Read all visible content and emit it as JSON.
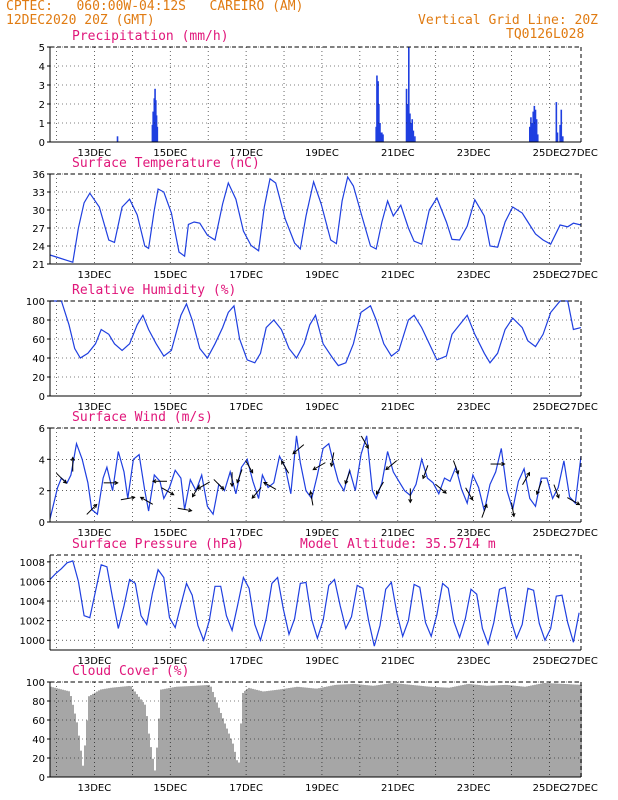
{
  "header": {
    "line1": "CPTEC:   060:00W-04:12S   CAREIRO (AM)",
    "line2": "12DEC2020 20Z (GMT)",
    "grid_note": "Vertical Grid Line: 20Z",
    "code": "TQ0126L028"
  },
  "x_ticks": [
    "13DEC",
    "15DEC",
    "17DEC",
    "19DEC",
    "21DEC",
    "23DEC",
    "25DEC",
    "27DEC"
  ],
  "colors": {
    "header": "#e07b12",
    "title": "#e0167a",
    "line": "#1f3fe0",
    "cloud": "#a6a6a6",
    "wind_arrow": "#000000"
  },
  "chart_data": [
    {
      "type": "bar",
      "id": "precip",
      "title": "Precipitation (mm/h)",
      "ylim": [
        0,
        5
      ],
      "yticks": [
        "0",
        "1",
        "2",
        "3",
        "4",
        "5"
      ],
      "grid": true,
      "x_unit": "day offset from 12DEC2020 20Z",
      "x": [
        1.78,
        2.7,
        2.72,
        2.75,
        2.77,
        2.79,
        2.81,
        2.83,
        8.6,
        8.62,
        8.65,
        8.67,
        8.7,
        8.72,
        8.75,
        8.78,
        9.4,
        9.43,
        9.46,
        9.49,
        9.52,
        9.55,
        9.58,
        9.62,
        12.65,
        12.68,
        12.71,
        12.74,
        12.77,
        12.8,
        12.83,
        12.86,
        13.35,
        13.38,
        13.45,
        13.48,
        13.52
      ],
      "values": [
        0.3,
        0.9,
        1.6,
        2.3,
        2.8,
        2.2,
        1.4,
        0.8,
        0.8,
        3.5,
        3.2,
        2.0,
        1.0,
        0.5,
        0.5,
        0.4,
        2.8,
        2.0,
        5.0,
        1.5,
        1.0,
        1.2,
        0.6,
        0.3,
        0.8,
        1.3,
        1.0,
        1.6,
        1.9,
        1.7,
        1.2,
        0.4,
        2.1,
        0.5,
        0.9,
        1.7,
        0.3
      ]
    },
    {
      "type": "line",
      "id": "temp",
      "title": "Surface Temperature (nC)",
      "ylim": [
        21,
        36
      ],
      "yticks": [
        "21",
        "24",
        "27",
        "30",
        "33",
        "36"
      ],
      "grid": true,
      "x": [
        0,
        0.25,
        0.45,
        0.6,
        0.75,
        0.9,
        1.05,
        1.3,
        1.55,
        1.7,
        1.9,
        2.1,
        2.3,
        2.5,
        2.6,
        2.75,
        2.85,
        3.0,
        3.2,
        3.4,
        3.55,
        3.65,
        3.8,
        3.95,
        4.15,
        4.35,
        4.55,
        4.7,
        4.9,
        5.1,
        5.3,
        5.5,
        5.65,
        5.8,
        5.95,
        6.2,
        6.45,
        6.6,
        6.75,
        6.95,
        7.15,
        7.4,
        7.55,
        7.7,
        7.85,
        8.0,
        8.2,
        8.45,
        8.6,
        8.75,
        8.9,
        9.05,
        9.25,
        9.45,
        9.6,
        9.8,
        10.0,
        10.2,
        10.45,
        10.6,
        10.8,
        11.0,
        11.2,
        11.45,
        11.6,
        11.8,
        12.0,
        12.2,
        12.45,
        12.6,
        12.8,
        13.0,
        13.2,
        13.45,
        13.65,
        13.8,
        14.0
      ],
      "values": [
        22.5,
        22,
        21.6,
        21.3,
        27,
        31.2,
        32.8,
        30.5,
        25,
        24.6,
        30.5,
        31.8,
        29.2,
        24,
        23.6,
        30,
        33.5,
        33,
        29.5,
        23,
        22.3,
        27.6,
        28,
        27.8,
        25.8,
        25,
        31,
        34.5,
        31.8,
        26.5,
        24.1,
        23.2,
        30.5,
        35.2,
        34.5,
        28.5,
        24.5,
        23.5,
        29,
        34.7,
        31,
        25,
        24.4,
        31.5,
        35.5,
        34,
        29.5,
        24,
        23.5,
        28,
        31.5,
        29,
        30.8,
        27,
        24.8,
        24.3,
        30,
        32,
        28,
        25.1,
        25,
        27.3,
        31.7,
        29,
        24,
        23.8,
        28,
        30.5,
        29.5,
        28,
        26,
        25,
        24.3,
        27.5,
        27.2,
        27.8,
        27.5
      ]
    },
    {
      "type": "line",
      "id": "rh",
      "title": "Relative Humidity (%)",
      "ylim": [
        0,
        100
      ],
      "yticks": [
        "0",
        "20",
        "40",
        "60",
        "80",
        "100"
      ],
      "grid": true,
      "x": [
        0,
        0.3,
        0.5,
        0.65,
        0.8,
        1.0,
        1.2,
        1.35,
        1.55,
        1.7,
        1.9,
        2.1,
        2.3,
        2.45,
        2.6,
        2.8,
        3.0,
        3.2,
        3.45,
        3.6,
        3.75,
        3.95,
        4.15,
        4.35,
        4.55,
        4.7,
        4.85,
        5.0,
        5.2,
        5.4,
        5.55,
        5.7,
        5.9,
        6.1,
        6.3,
        6.5,
        6.7,
        6.85,
        7.0,
        7.2,
        7.45,
        7.6,
        7.8,
        8.0,
        8.2,
        8.45,
        8.6,
        8.8,
        9.0,
        9.2,
        9.45,
        9.6,
        9.8,
        10.0,
        10.2,
        10.45,
        10.6,
        10.8,
        11.0,
        11.2,
        11.45,
        11.6,
        11.8,
        12.0,
        12.2,
        12.45,
        12.6,
        12.8,
        13.0,
        13.2,
        13.45,
        13.65,
        13.8,
        14.0
      ],
      "values": [
        100,
        100,
        75,
        50,
        40,
        45,
        55,
        70,
        65,
        55,
        48,
        55,
        75,
        85,
        70,
        55,
        42,
        48,
        85,
        97,
        80,
        50,
        40,
        55,
        72,
        88,
        95,
        60,
        38,
        35,
        45,
        72,
        80,
        70,
        50,
        40,
        55,
        75,
        85,
        55,
        40,
        32,
        35,
        55,
        88,
        95,
        80,
        55,
        42,
        48,
        80,
        85,
        72,
        55,
        38,
        42,
        65,
        75,
        85,
        65,
        45,
        35,
        45,
        70,
        82,
        72,
        58,
        52,
        65,
        88,
        100,
        100,
        70,
        72
      ]
    },
    {
      "type": "line",
      "id": "wind",
      "title": "Surface Wind (m/s)",
      "ylim": [
        0,
        6
      ],
      "yticks": [
        "0",
        "2",
        "4",
        "6"
      ],
      "grid": true,
      "x": [
        0,
        0.1,
        0.2,
        0.3,
        0.45,
        0.55,
        0.7,
        0.85,
        1.0,
        1.1,
        1.25,
        1.4,
        1.5,
        1.65,
        1.8,
        1.95,
        2.05,
        2.2,
        2.35,
        2.5,
        2.6,
        2.75,
        2.9,
        3.0,
        3.15,
        3.3,
        3.45,
        3.55,
        3.7,
        3.85,
        4.0,
        4.15,
        4.3,
        4.45,
        4.6,
        4.75,
        4.9,
        5.05,
        5.2,
        5.35,
        5.5,
        5.6,
        5.75,
        5.9,
        6.05,
        6.2,
        6.35,
        6.5,
        6.6,
        6.75,
        6.9,
        7.05,
        7.2,
        7.35,
        7.5,
        7.6,
        7.75,
        7.9,
        8.05,
        8.2,
        8.35,
        8.5,
        8.6,
        8.75,
        8.9,
        9.05,
        9.2,
        9.35,
        9.5,
        9.65,
        9.8,
        9.95,
        10.1,
        10.25,
        10.4,
        10.55,
        10.7,
        10.85,
        11.0,
        11.15,
        11.3,
        11.45,
        11.6,
        11.75,
        11.9,
        12.05,
        12.2,
        12.35,
        12.5,
        12.65,
        12.8,
        12.95,
        13.1,
        13.25,
        13.4,
        13.55,
        13.7,
        13.85,
        14.0
      ],
      "values": [
        0.2,
        1.2,
        2.2,
        2.8,
        2.5,
        3.0,
        5.0,
        4.0,
        2.5,
        0.8,
        0.5,
        2.8,
        3.5,
        2.0,
        4.5,
        3.2,
        1.5,
        4.0,
        4.3,
        2.0,
        0.7,
        3.0,
        2.6,
        1.5,
        2.2,
        3.3,
        2.8,
        0.8,
        2.7,
        2.0,
        3.0,
        1.0,
        0.5,
        2.4,
        2.0,
        3.2,
        1.8,
        3.5,
        4.0,
        2.6,
        1.5,
        3.0,
        2.2,
        2.5,
        4.2,
        3.5,
        1.8,
        5.5,
        3.8,
        2.0,
        1.5,
        3.0,
        4.7,
        5.0,
        3.5,
        2.6,
        2.0,
        3.3,
        2.0,
        4.3,
        5.5,
        2.0,
        1.5,
        2.5,
        4.5,
        3.2,
        2.6,
        2.0,
        1.7,
        2.4,
        4.0,
        2.8,
        2.5,
        1.8,
        2.8,
        2.6,
        3.5,
        2.1,
        1.2,
        3.0,
        2.2,
        0.7,
        2.4,
        3.2,
        4.7,
        2.0,
        0.8,
        2.6,
        3.4,
        1.5,
        1.0,
        2.8,
        2.8,
        1.5,
        2.2,
        3.9,
        1.6,
        1.2,
        4.2
      ]
    },
    {
      "type": "line",
      "id": "pres",
      "title": "Surface Pressure (hPa)",
      "annotation": "Model Altitude: 35.5714 m",
      "ylim": [
        999,
        1008.7
      ],
      "yticks": [
        "1000",
        "1002",
        "1004",
        "1006",
        "1008"
      ],
      "grid": true,
      "x": [
        0,
        0.15,
        0.3,
        0.45,
        0.6,
        0.75,
        0.9,
        1.05,
        1.2,
        1.35,
        1.5,
        1.65,
        1.8,
        1.95,
        2.1,
        2.25,
        2.4,
        2.55,
        2.7,
        2.85,
        3.0,
        3.15,
        3.3,
        3.45,
        3.6,
        3.75,
        3.9,
        4.05,
        4.2,
        4.35,
        4.5,
        4.65,
        4.8,
        4.95,
        5.1,
        5.25,
        5.4,
        5.55,
        5.7,
        5.85,
        6.0,
        6.15,
        6.3,
        6.45,
        6.6,
        6.75,
        6.9,
        7.05,
        7.2,
        7.35,
        7.5,
        7.65,
        7.8,
        7.95,
        8.1,
        8.25,
        8.4,
        8.55,
        8.7,
        8.85,
        9.0,
        9.15,
        9.3,
        9.45,
        9.6,
        9.75,
        9.9,
        10.05,
        10.2,
        10.35,
        10.5,
        10.65,
        10.8,
        10.95,
        11.1,
        11.25,
        11.4,
        11.55,
        11.7,
        11.85,
        12.0,
        12.15,
        12.3,
        12.45,
        12.6,
        12.75,
        12.9,
        13.05,
        13.2,
        13.35,
        13.5,
        13.65,
        13.8,
        13.95
      ],
      "values": [
        1006.2,
        1006.8,
        1007.3,
        1007.9,
        1008.1,
        1006,
        1002.5,
        1002.3,
        1005,
        1007.7,
        1007.5,
        1004.3,
        1001.2,
        1003.5,
        1006.2,
        1005.8,
        1002.5,
        1001.6,
        1004.8,
        1007.2,
        1006.4,
        1002.3,
        1001.3,
        1003.6,
        1005.8,
        1004.6,
        1001.5,
        1000,
        1002,
        1005.5,
        1005.5,
        1002.5,
        1001,
        1003.6,
        1006.4,
        1005.3,
        1001.6,
        1000,
        1002.2,
        1005.8,
        1006.4,
        1003.2,
        1000.6,
        1002.2,
        1005.8,
        1005.9,
        1002.1,
        1000.2,
        1002,
        1005.6,
        1006.2,
        1003.5,
        1001.2,
        1002.4,
        1005.6,
        1005.3,
        1002,
        999.4,
        1001.5,
        1005.2,
        1005.9,
        1002.7,
        1000.4,
        1002,
        1005.7,
        1005.4,
        1001.8,
        1000.4,
        1002.6,
        1005.8,
        1005.3,
        1001.9,
        1000.3,
        1002.2,
        1005.2,
        1004.7,
        1001.2,
        999.6,
        1001.8,
        1005.2,
        1005.4,
        1002.1,
        1000.2,
        1001.6,
        1005.3,
        1005.1,
        1001.7,
        1000,
        1001.2,
        1004.5,
        1004.6,
        1001.8,
        999.8,
        1002.8
      ]
    },
    {
      "type": "bar",
      "id": "cloud",
      "title": "Cloud Cover (%)",
      "ylim": [
        0,
        100
      ],
      "yticks": [
        "0",
        "20",
        "40",
        "60",
        "80",
        "100"
      ],
      "grid": true,
      "x": [
        0,
        0.5,
        0.7,
        0.85,
        1.0,
        1.3,
        1.6,
        2.1,
        2.5,
        2.6,
        2.75,
        2.9,
        3.3,
        3.8,
        4.2,
        4.6,
        4.8,
        4.95,
        5.05,
        5.2,
        5.6,
        6.0,
        6.5,
        7.0,
        7.5,
        8.0,
        8.5,
        9.0,
        9.5,
        10.0,
        10.5,
        11.0,
        11.5,
        12.0,
        12.5,
        13.0,
        13.5,
        14.0
      ],
      "values": [
        95,
        90,
        55,
        10,
        85,
        92,
        94,
        96,
        75,
        40,
        5,
        92,
        95,
        96,
        97,
        55,
        35,
        10,
        88,
        94,
        90,
        92,
        95,
        93,
        97,
        98,
        96,
        99,
        97,
        95,
        94,
        98,
        96,
        97,
        95,
        99,
        98,
        97
      ]
    }
  ],
  "wind_arrows": [
    {
      "x": 0.3,
      "dir_deg": 135
    },
    {
      "x": 0.6,
      "dir_deg": 0
    },
    {
      "x": 1.1,
      "dir_deg": 45
    },
    {
      "x": 1.6,
      "dir_deg": 90
    },
    {
      "x": 2.05,
      "dir_deg": 80
    },
    {
      "x": 2.55,
      "dir_deg": 300
    },
    {
      "x": 2.9,
      "dir_deg": 270
    },
    {
      "x": 3.1,
      "dir_deg": 120
    },
    {
      "x": 3.55,
      "dir_deg": 100
    },
    {
      "x": 3.85,
      "dir_deg": 210
    },
    {
      "x": 4.05,
      "dir_deg": 240
    },
    {
      "x": 4.45,
      "dir_deg": 135
    },
    {
      "x": 4.8,
      "dir_deg": 180
    },
    {
      "x": 5.0,
      "dir_deg": 200
    },
    {
      "x": 5.25,
      "dir_deg": 150
    },
    {
      "x": 5.45,
      "dir_deg": 220
    },
    {
      "x": 5.8,
      "dir_deg": 300
    },
    {
      "x": 6.2,
      "dir_deg": 330
    },
    {
      "x": 6.55,
      "dir_deg": 230
    },
    {
      "x": 6.9,
      "dir_deg": 350
    },
    {
      "x": 7.1,
      "dir_deg": 240
    },
    {
      "x": 7.45,
      "dir_deg": 190
    },
    {
      "x": 7.85,
      "dir_deg": 200
    },
    {
      "x": 8.3,
      "dir_deg": 150
    },
    {
      "x": 8.7,
      "dir_deg": 210
    },
    {
      "x": 9.0,
      "dir_deg": 230
    },
    {
      "x": 9.5,
      "dir_deg": 180
    },
    {
      "x": 9.9,
      "dir_deg": 200
    },
    {
      "x": 10.3,
      "dir_deg": 130
    },
    {
      "x": 10.7,
      "dir_deg": 160
    },
    {
      "x": 11.05,
      "dir_deg": 150
    },
    {
      "x": 11.45,
      "dir_deg": 20
    },
    {
      "x": 11.8,
      "dir_deg": 90
    },
    {
      "x": 12.2,
      "dir_deg": 170
    },
    {
      "x": 12.55,
      "dir_deg": 30
    },
    {
      "x": 12.9,
      "dir_deg": 200
    },
    {
      "x": 13.35,
      "dir_deg": 160
    },
    {
      "x": 13.8,
      "dir_deg": 120
    }
  ]
}
